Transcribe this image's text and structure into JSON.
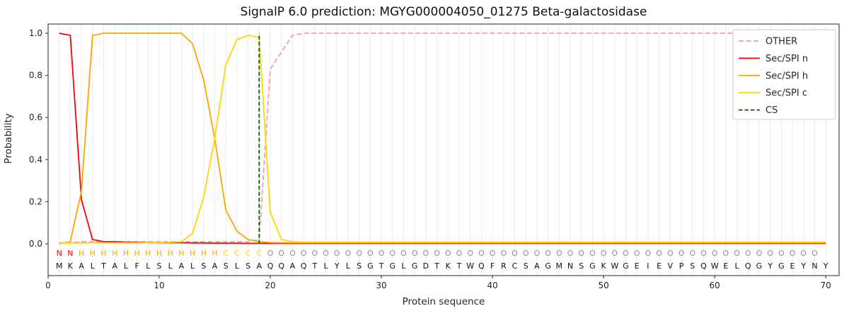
{
  "chart_data": {
    "type": "line",
    "title": "SignalP 6.0 prediction: MGYG000004050_01275 Beta-galactosidase",
    "xlabel": "Protein sequence",
    "ylabel": "Probability",
    "x_ticks": [
      0,
      10,
      20,
      30,
      40,
      50,
      60,
      70
    ],
    "y_ticks": [
      0.0,
      0.2,
      0.4,
      0.6,
      0.8,
      1.0
    ],
    "xlim": [
      0,
      71.2
    ],
    "ylim": [
      0,
      1.0
    ],
    "grid": true,
    "legend_position": "top-right",
    "x_start": 1,
    "sequence": "MKALTALFLSLALSASLSAQQAQTLYLSGTGLGDTKTWQFRCSAGMNSGKWGEIEVPSQWELQGYGEYNY",
    "regions": "NNHHHHHHHHHHHHHCCCCOOOOOOOOOOOOOOOOOOOOOOOOOOOOOOOOOOOOOOOOOOOOOOOOOO",
    "region_colors": {
      "N": "#ff0000",
      "H": "#ffa500",
      "C": "#ffd700",
      "O": "#909090"
    },
    "colors": {
      "grid": "#ebebeb",
      "spine": "#262626",
      "tick_text": "#262626",
      "sequence_text": "#111111"
    },
    "series": [
      {
        "name": "OTHER",
        "color": "#f5a0a0",
        "dash": "7 3.5",
        "values": [
          0.005,
          0.005,
          0.01,
          0.01,
          0.01,
          0.01,
          0.01,
          0.01,
          0.01,
          0.01,
          0.01,
          0.01,
          0.01,
          0.01,
          0.01,
          0.01,
          0.01,
          0.01,
          0.02,
          0.83,
          0.91,
          0.99,
          1.0,
          1.0,
          1.0,
          1.0,
          1.0,
          1.0,
          1.0,
          1.0,
          1.0,
          1.0,
          1.0,
          1.0,
          1.0,
          1.0,
          1.0,
          1.0,
          1.0,
          1.0,
          1.0,
          1.0,
          1.0,
          1.0,
          1.0,
          1.0,
          1.0,
          1.0,
          1.0,
          1.0,
          1.0,
          1.0,
          1.0,
          1.0,
          1.0,
          1.0,
          1.0,
          1.0,
          1.0,
          1.0,
          1.0,
          1.0,
          1.0,
          1.0,
          1.0,
          1.0,
          1.0,
          1.0,
          1.0,
          1.0
        ]
      },
      {
        "name": "Sec/SPI n",
        "color": "#ff0000",
        "dash": "",
        "values": [
          1.0,
          0.99,
          0.21,
          0.02,
          0.01,
          0.01,
          0.008,
          0.007,
          0.006,
          0.005,
          0.005,
          0.005,
          0.004,
          0.004,
          0.003,
          0.003,
          0.003,
          0.002,
          0.002,
          0.002,
          0.002,
          0.002,
          0.002,
          0.002,
          0.002,
          0.002,
          0.002,
          0.002,
          0.002,
          0.002,
          0.002,
          0.002,
          0.002,
          0.002,
          0.002,
          0.002,
          0.002,
          0.002,
          0.002,
          0.002,
          0.002,
          0.002,
          0.002,
          0.002,
          0.002,
          0.002,
          0.002,
          0.002,
          0.002,
          0.002,
          0.002,
          0.002,
          0.002,
          0.002,
          0.002,
          0.002,
          0.002,
          0.002,
          0.002,
          0.002,
          0.002,
          0.002,
          0.002,
          0.002,
          0.002,
          0.002,
          0.002,
          0.002,
          0.002,
          0.002
        ]
      },
      {
        "name": "Sec/SPI h",
        "color": "#ffa500",
        "dash": "",
        "values": [
          0.0,
          0.01,
          0.25,
          0.99,
          1.0,
          1.0,
          1.0,
          1.0,
          1.0,
          1.0,
          1.0,
          1.0,
          0.95,
          0.78,
          0.5,
          0.16,
          0.06,
          0.02,
          0.01,
          0.006,
          0.005,
          0.005,
          0.005,
          0.005,
          0.005,
          0.005,
          0.005,
          0.005,
          0.005,
          0.005,
          0.005,
          0.005,
          0.005,
          0.005,
          0.005,
          0.005,
          0.005,
          0.005,
          0.005,
          0.005,
          0.005,
          0.005,
          0.005,
          0.005,
          0.005,
          0.005,
          0.005,
          0.005,
          0.005,
          0.005,
          0.005,
          0.005,
          0.005,
          0.005,
          0.005,
          0.005,
          0.005,
          0.005,
          0.005,
          0.005,
          0.005,
          0.005,
          0.005,
          0.005,
          0.005,
          0.005,
          0.005,
          0.005,
          0.005,
          0.005
        ]
      },
      {
        "name": "Sec/SPI c",
        "color": "#ffd700",
        "dash": "",
        "values": [
          0.004,
          0.004,
          0.004,
          0.005,
          0.005,
          0.005,
          0.005,
          0.005,
          0.006,
          0.006,
          0.007,
          0.01,
          0.05,
          0.22,
          0.5,
          0.85,
          0.97,
          0.99,
          0.98,
          0.15,
          0.02,
          0.01,
          0.008,
          0.008,
          0.008,
          0.008,
          0.008,
          0.008,
          0.008,
          0.008,
          0.008,
          0.008,
          0.008,
          0.008,
          0.008,
          0.008,
          0.008,
          0.008,
          0.008,
          0.008,
          0.008,
          0.008,
          0.008,
          0.008,
          0.008,
          0.008,
          0.008,
          0.008,
          0.008,
          0.008,
          0.008,
          0.008,
          0.008,
          0.008,
          0.008,
          0.008,
          0.008,
          0.008,
          0.008,
          0.008,
          0.008,
          0.008,
          0.008,
          0.008,
          0.008,
          0.008,
          0.008,
          0.008,
          0.008,
          0.008
        ]
      }
    ],
    "cs": {
      "name": "CS",
      "color": "#006400",
      "dash": "5.5 3",
      "position": 19
    }
  }
}
